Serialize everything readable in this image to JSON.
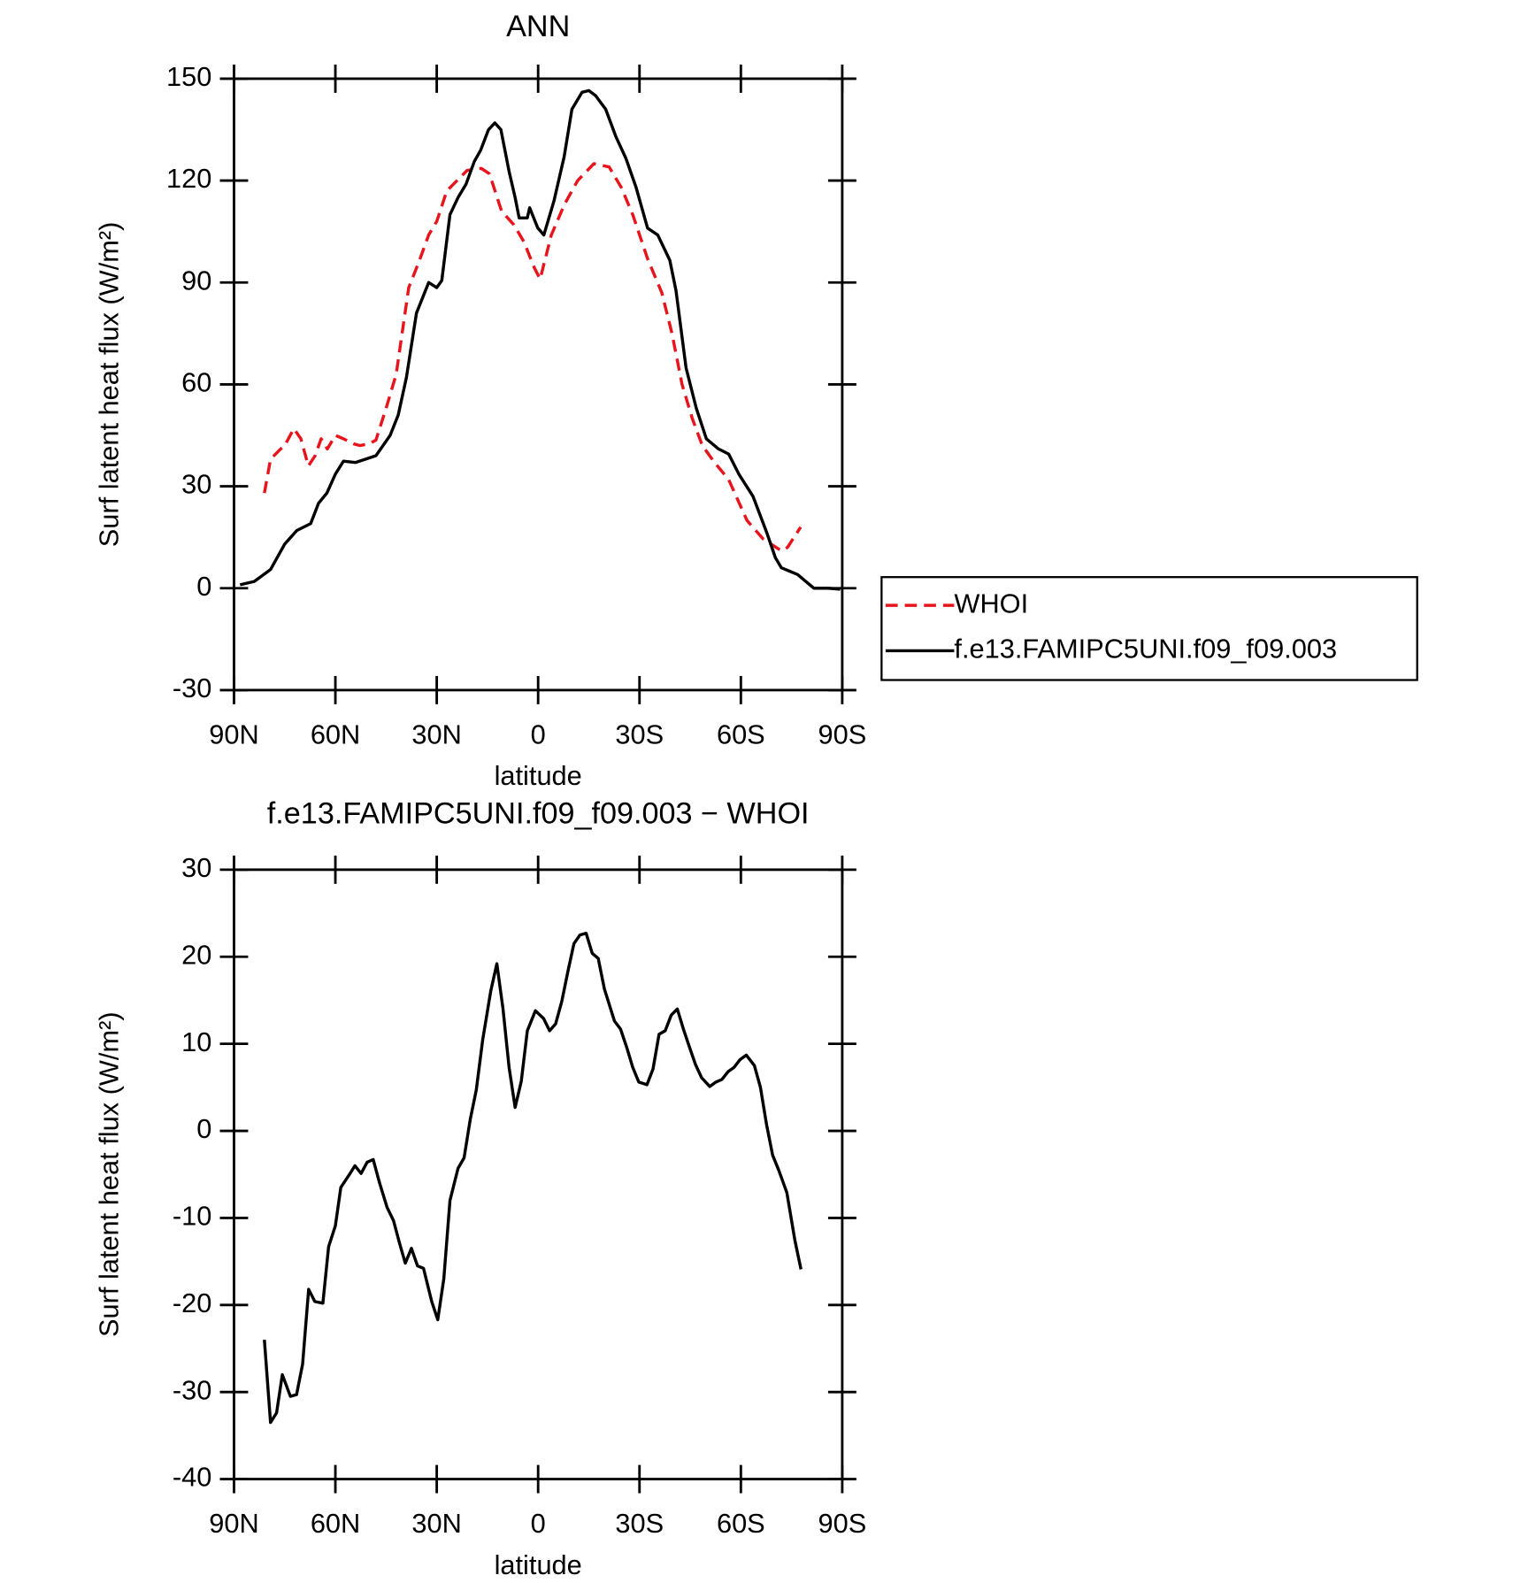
{
  "chart_data": [
    {
      "type": "line",
      "title": "ANN",
      "x_label": "latitude",
      "y_label": "Surf latent heat flux (W/m²)",
      "xlim": [
        90,
        -90
      ],
      "xticks": [
        {
          "value": 90,
          "label": "90N"
        },
        {
          "value": 60,
          "label": "60N"
        },
        {
          "value": 30,
          "label": "30N"
        },
        0,
        {
          "value": -30,
          "label": "30S"
        },
        {
          "value": -60,
          "label": "60S"
        },
        {
          "value": -90,
          "label": "90S"
        }
      ],
      "ylim": [
        -30,
        150
      ],
      "yticks": [
        -30,
        0,
        30,
        60,
        90,
        120,
        150
      ],
      "legend": "right",
      "series": [
        {
          "name": "WHOI",
          "color": "#e8141c",
          "style": "dashed",
          "x": [
            81,
            79.2,
            76.2,
            75,
            72.3,
            70.2,
            68,
            66,
            64.2,
            62.4,
            60,
            57.6,
            54.6,
            52.8,
            50,
            48,
            45,
            42,
            38.3,
            35.3,
            32.4,
            30,
            27,
            24,
            21,
            16.8,
            14.4,
            10.8,
            7.2,
            4.2,
            1.2,
            -0.6,
            -3.9,
            -7.8,
            -11.7,
            -16.5,
            -21,
            -24.6,
            -28,
            -32.4,
            -36.6,
            -39.6,
            -42.6,
            -45.6,
            -48.6,
            -52.2,
            -56.4,
            -61.8,
            -66.6,
            -72,
            -73.8,
            -77.7
          ],
          "values": [
            28,
            38,
            41,
            42,
            47,
            44,
            36,
            39,
            44,
            41,
            45,
            44,
            42.5,
            42,
            42.5,
            43.6,
            53,
            63,
            88.5,
            96,
            104,
            108,
            117,
            120,
            123,
            123.6,
            122,
            111,
            107,
            102,
            94.5,
            91,
            104,
            113,
            120,
            125,
            124,
            118,
            110,
            97,
            87,
            75,
            60,
            50,
            42,
            37,
            32,
            20,
            14.5,
            11,
            12,
            18
          ]
        },
        {
          "name": "f.e13.FAMIPC5UNI.f09_f09.003",
          "color": "#000000",
          "style": "solid",
          "x": [
            88.2,
            84,
            79.2,
            75,
            71.4,
            67.3,
            65,
            62.5,
            60,
            57.6,
            54,
            48,
            43.8,
            41.4,
            39,
            36,
            32.4,
            30,
            28.5,
            26.1,
            23.7,
            21.3,
            18.9,
            17,
            14.7,
            12.8,
            11,
            8.6,
            6.8,
            5.6,
            3.2,
            2.5,
            0.1,
            -1.7,
            -4.7,
            -7.7,
            -10,
            -13,
            -15,
            -17,
            -20,
            -23,
            -26,
            -29,
            -32.4,
            -35.4,
            -39,
            -40.8,
            -43.8,
            -46.8,
            -49.8,
            -53.4,
            -56.4,
            -59.4,
            -63.6,
            -67.8,
            -70.2,
            -72,
            -76.8,
            -79.2,
            -81.6,
            -85.8,
            -89.4
          ],
          "values": [
            1,
            2,
            5.5,
            13,
            17,
            19,
            25,
            28,
            33.6,
            37.4,
            37,
            39,
            45,
            51,
            62,
            81,
            90,
            88.5,
            90.6,
            110,
            115,
            119,
            125.6,
            129,
            135,
            137,
            135,
            122.7,
            115,
            109,
            109,
            112,
            106,
            104,
            114,
            127,
            141,
            146,
            146.5,
            145,
            141,
            133,
            126.5,
            118,
            106,
            104,
            96.5,
            87.6,
            64.8,
            53,
            44,
            41,
            39.5,
            33.6,
            27,
            16,
            9,
            6,
            4,
            2,
            0,
            0,
            -0.3
          ]
        }
      ]
    },
    {
      "type": "line",
      "title": "f.e13.FAMIPC5UNI.f09_f09.003 − WHOI",
      "x_label": "latitude",
      "y_label": "Surf latent heat flux (W/m²)",
      "xlim": [
        90,
        -90
      ],
      "xticks": [
        {
          "value": 90,
          "label": "90N"
        },
        {
          "value": 60,
          "label": "60N"
        },
        {
          "value": 30,
          "label": "30N"
        },
        0,
        {
          "value": -30,
          "label": "30S"
        },
        {
          "value": -60,
          "label": "60S"
        },
        {
          "value": -90,
          "label": "90S"
        }
      ],
      "ylim": [
        -40,
        30
      ],
      "yticks": [
        -40,
        -30,
        -20,
        -10,
        0,
        10,
        20,
        30
      ],
      "color": "#000000",
      "x": [
        81,
        79.2,
        77.4,
        75.7,
        73.3,
        71.5,
        69.7,
        67.9,
        66.1,
        63.7,
        62,
        60,
        58.4,
        56,
        54.2,
        52.4,
        50.6,
        48.8,
        47,
        44.7,
        42.8,
        41,
        39.3,
        37.5,
        35.7,
        33.9,
        31.5,
        29.7,
        27.9,
        26.1,
        23.7,
        21.9,
        20.1,
        18.3,
        16.4,
        14,
        12.2,
        10.4,
        8.6,
        6.8,
        5,
        3.2,
        0.8,
        -1.6,
        -3.4,
        -5.2,
        -7,
        -8.8,
        -10.6,
        -12.4,
        -14.2,
        -16,
        -17.8,
        -19.6,
        -22.6,
        -24.4,
        -26.2,
        -28,
        -29.8,
        -32.2,
        -34,
        -35.8,
        -37.6,
        -39.4,
        -41.2,
        -43,
        -44.8,
        -46.6,
        -48.4,
        -50.8,
        -52.6,
        -54.4,
        -56.2,
        -58,
        -59.8,
        -61.6,
        -64,
        -65.8,
        -67.6,
        -69.4,
        -71.2,
        -73.6,
        -76,
        -77.8
      ],
      "values": [
        -24,
        -33.5,
        -32.4,
        -28,
        -30.5,
        -30.3,
        -26.8,
        -18.2,
        -19.6,
        -19.8,
        -13.3,
        -10.9,
        -6.5,
        -5.1,
        -4,
        -4.9,
        -3.6,
        -3.3,
        -5.9,
        -8.8,
        -10.3,
        -12.9,
        -15.2,
        -13.5,
        -15.5,
        -15.8,
        -19.6,
        -21.7,
        -17,
        -8,
        -4.3,
        -3.1,
        1.3,
        4.7,
        10.5,
        16.1,
        19.2,
        14,
        7.3,
        2.7,
        5.7,
        11.5,
        13.8,
        12.9,
        11.5,
        12.3,
        14.9,
        18.3,
        21.5,
        22.5,
        22.7,
        20.4,
        19.8,
        16.3,
        12.6,
        11.7,
        9.6,
        7.3,
        5.6,
        5.3,
        7.1,
        11.1,
        11.5,
        13.3,
        14,
        11.7,
        9.6,
        7.6,
        6.1,
        5.1,
        5.6,
        5.9,
        6.8,
        7.3,
        8.2,
        8.7,
        7.5,
        5,
        0.7,
        -2.8,
        -4.5,
        -7.1,
        -12.6,
        -15.9
      ]
    }
  ]
}
